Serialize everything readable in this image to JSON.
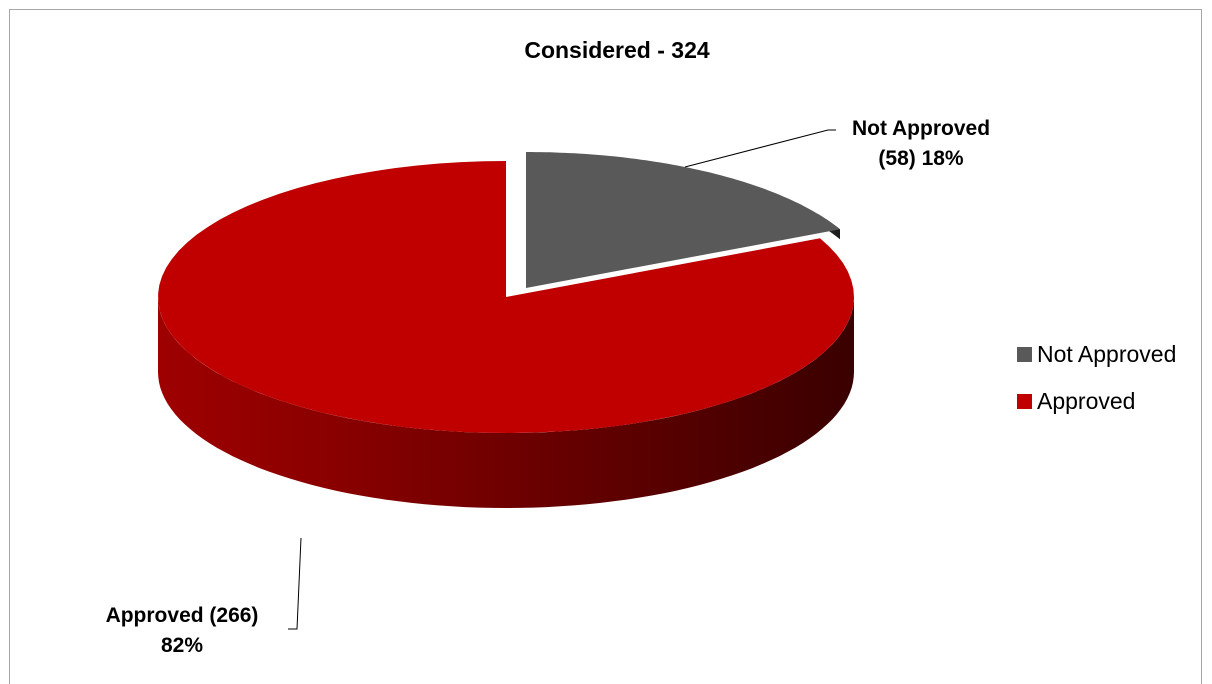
{
  "chart_data": {
    "type": "pie",
    "title": "Considered - 324",
    "three_d": true,
    "exploded": true,
    "legend_position": "right",
    "slices": [
      {
        "name": "Not Approved",
        "value": 58,
        "percent": 18,
        "color": "#595959",
        "label_line1": "Not Approved",
        "label_line2": "(58) 18%"
      },
      {
        "name": "Approved",
        "value": 266,
        "percent": 82,
        "color": "#c00000",
        "label_line1": "Approved (266)",
        "label_line2": "82%"
      }
    ],
    "legend": [
      {
        "label": "Not Approved",
        "color": "#595959"
      },
      {
        "label": "Approved",
        "color": "#c00000"
      }
    ]
  }
}
